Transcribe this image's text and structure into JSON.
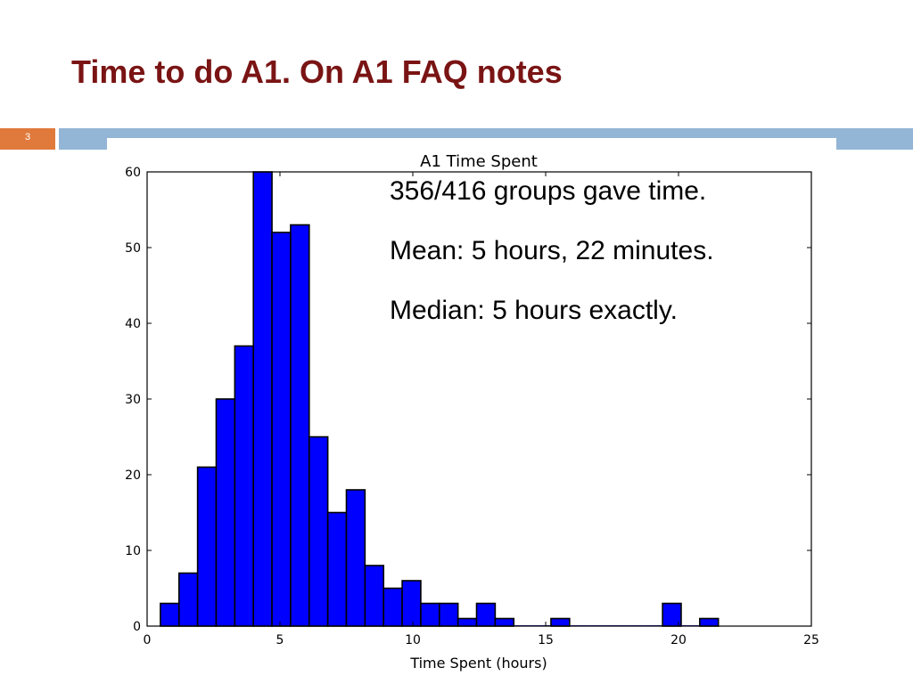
{
  "slide": {
    "title": "Time to do A1. On A1 FAQ notes",
    "number": "3",
    "accent_color": "#7a1414",
    "rule_left_color": "#e07a3c",
    "rule_right_color": "#93b5d6"
  },
  "notes": {
    "line1": "356/416 groups gave time.",
    "line2": "Mean: 5 hours, 22 minutes.",
    "line3": "Median: 5 hours exactly."
  },
  "chart_data": {
    "type": "bar",
    "title": "A1 Time Spent",
    "xlabel": "Time Spent (hours)",
    "ylabel": "",
    "xlim": [
      0,
      25
    ],
    "ylim": [
      0,
      60
    ],
    "xticks": [
      0,
      5,
      10,
      15,
      20,
      25
    ],
    "yticks": [
      0,
      10,
      20,
      30,
      40,
      50,
      60
    ],
    "grid": false,
    "bar_color": "#0000ff",
    "bin_width": 0.7,
    "bins": [
      {
        "x": 0.5,
        "count": 3
      },
      {
        "x": 1.2,
        "count": 7
      },
      {
        "x": 1.9,
        "count": 21
      },
      {
        "x": 2.6,
        "count": 30
      },
      {
        "x": 3.3,
        "count": 37
      },
      {
        "x": 4.0,
        "count": 60
      },
      {
        "x": 4.7,
        "count": 52
      },
      {
        "x": 5.4,
        "count": 53
      },
      {
        "x": 6.1,
        "count": 25
      },
      {
        "x": 6.8,
        "count": 15
      },
      {
        "x": 7.5,
        "count": 18
      },
      {
        "x": 8.2,
        "count": 8
      },
      {
        "x": 8.9,
        "count": 5
      },
      {
        "x": 9.6,
        "count": 6
      },
      {
        "x": 10.3,
        "count": 3
      },
      {
        "x": 11.0,
        "count": 3
      },
      {
        "x": 11.7,
        "count": 1
      },
      {
        "x": 12.4,
        "count": 3
      },
      {
        "x": 13.1,
        "count": 1
      },
      {
        "x": 13.8,
        "count": 0
      },
      {
        "x": 14.5,
        "count": 0
      },
      {
        "x": 15.2,
        "count": 1
      },
      {
        "x": 15.9,
        "count": 0
      },
      {
        "x": 16.6,
        "count": 0
      },
      {
        "x": 17.3,
        "count": 0
      },
      {
        "x": 18.0,
        "count": 0
      },
      {
        "x": 18.7,
        "count": 0
      },
      {
        "x": 19.4,
        "count": 3
      },
      {
        "x": 20.1,
        "count": 0
      },
      {
        "x": 20.8,
        "count": 1
      }
    ]
  }
}
